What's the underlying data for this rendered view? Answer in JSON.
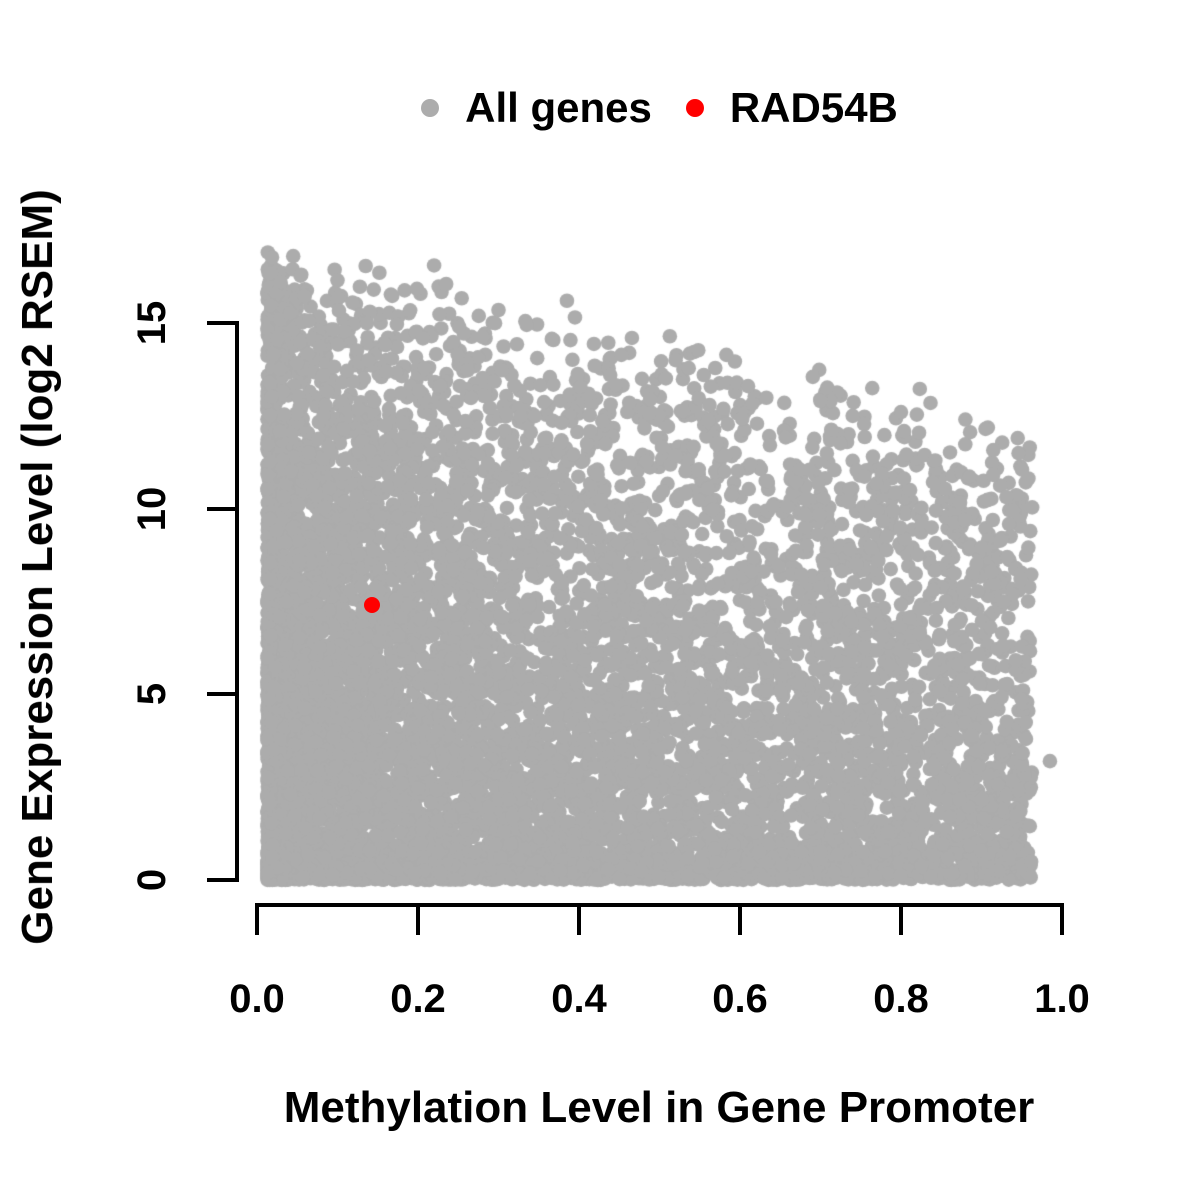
{
  "figure": {
    "background": "#FFFFFF",
    "legend": {
      "items": [
        {
          "label": "All genes",
          "marker": "filled-circle",
          "color": "#ACACAC"
        },
        {
          "label": "RAD54B",
          "marker": "filled-circle",
          "color": "#FF0000"
        }
      ]
    },
    "x_axis": {
      "title": "Methylation Level in Gene Promoter",
      "tick_labels": [
        "0.0",
        "0.2",
        "0.4",
        "0.6",
        "0.8",
        "1.0"
      ],
      "tick_values": [
        0,
        0.2,
        0.4,
        0.6,
        0.8,
        1.0
      ],
      "range": [
        0,
        1
      ]
    },
    "y_axis": {
      "title": "Gene Expression Level (log2 RSEM)",
      "tick_labels": [
        "0",
        "5",
        "10",
        "15"
      ],
      "tick_values": [
        0,
        5,
        10,
        15
      ],
      "range": [
        0,
        17
      ]
    }
  },
  "chart_data": {
    "type": "scatter",
    "title": "",
    "xlabel": "Methylation Level in Gene Promoter",
    "ylabel": "Gene Expression Level (log2 RSEM)",
    "xlim": [
      0,
      1
    ],
    "ylim": [
      0,
      17
    ],
    "x_ticks": [
      0,
      0.2,
      0.4,
      0.6,
      0.8,
      1.0
    ],
    "y_ticks": [
      0,
      5,
      10,
      15
    ],
    "grid": false,
    "legend_position": "top",
    "axis_color": "#000000",
    "series": [
      {
        "name": "All genes",
        "color": "#ACACAC",
        "marker_radius_px": 7.3,
        "description": "~9000 genes; methylation 0.01-0.97 skewed low; expression 0-16.8 with upper envelope declining from ~16.5 at low methylation to ~12 at high methylation; dense solid mass at low methylation and near expression 0",
        "generator": {
          "seed": 42,
          "n_points": 9000,
          "x_min": 0.013,
          "x_span": 0.95,
          "x_power": 1.8,
          "env_intercept": 16.6,
          "env_slope": -4.8,
          "env_jitter": 1.2,
          "p_zero": 0.16,
          "zero_scale": 0.9,
          "p_bulk": 0.54,
          "y_max": 16.9
        },
        "extra_points": [
          [
            0.045,
            16.8
          ],
          [
            0.055,
            16.3
          ],
          [
            0.1,
            16.15
          ],
          [
            0.145,
            15.9
          ],
          [
            0.22,
            16.55
          ],
          [
            0.235,
            16.05
          ],
          [
            0.3,
            15.35
          ],
          [
            0.335,
            14.95
          ],
          [
            0.385,
            15.6
          ],
          [
            0.395,
            15.15
          ],
          [
            0.52,
            14.0
          ],
          [
            0.555,
            13.6
          ],
          [
            0.61,
            13.3
          ],
          [
            0.655,
            12.85
          ],
          [
            0.7,
            12.9
          ],
          [
            0.74,
            12.5
          ],
          [
            0.8,
            12.6
          ],
          [
            0.88,
            12.4
          ],
          [
            0.905,
            12.15
          ],
          [
            0.945,
            11.9
          ],
          [
            0.985,
            3.2
          ],
          [
            0.96,
            1.45
          ]
        ]
      },
      {
        "name": "RAD54B",
        "color": "#FF0000",
        "marker_radius_px": 8,
        "points": [
          [
            0.143,
            7.4
          ]
        ]
      }
    ]
  }
}
